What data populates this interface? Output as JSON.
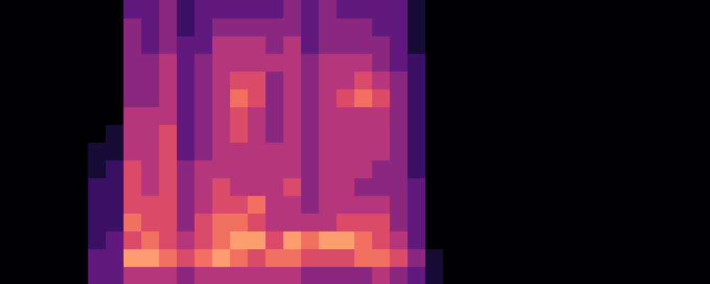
{
  "chart_data": {
    "type": "heatmap",
    "categories": [
      null,
      null,
      null,
      null,
      null,
      null,
      null,
      null,
      null,
      null,
      null,
      null,
      null,
      null,
      null,
      null,
      null,
      null,
      null,
      null,
      null,
      null,
      null,
      null,
      null,
      null,
      null,
      null,
      null,
      null,
      null,
      null,
      null,
      null,
      null,
      null,
      null,
      null,
      null,
      null
    ],
    "ylim": [
      0,
      16
    ],
    "zlim": [
      0,
      10
    ],
    "tick_labels": false,
    "grid": false,
    "cells": [
      [
        0,
        0,
        0,
        0,
        0,
        0,
        0,
        3,
        3,
        4,
        2,
        3,
        3,
        3,
        3,
        3,
        4,
        3,
        4,
        3,
        3,
        3,
        3,
        1,
        0,
        0,
        0,
        0,
        0,
        0,
        0,
        0,
        0,
        0,
        0,
        0,
        0,
        0,
        0,
        0
      ],
      [
        0,
        0,
        0,
        0,
        0,
        0,
        0,
        4,
        3,
        4,
        2,
        3,
        4,
        4,
        4,
        4,
        4,
        3,
        4,
        4,
        4,
        3,
        3,
        1,
        0,
        0,
        0,
        0,
        0,
        0,
        0,
        0,
        0,
        0,
        0,
        0,
        0,
        0,
        0,
        0
      ],
      [
        0,
        0,
        0,
        0,
        0,
        0,
        0,
        4,
        3,
        4,
        3,
        3,
        5,
        5,
        5,
        4,
        5,
        3,
        4,
        4,
        4,
        4,
        3,
        1,
        0,
        0,
        0,
        0,
        0,
        0,
        0,
        0,
        0,
        0,
        0,
        0,
        0,
        0,
        0,
        0
      ],
      [
        0,
        0,
        0,
        0,
        0,
        0,
        0,
        4,
        4,
        5,
        3,
        4,
        5,
        5,
        5,
        5,
        5,
        4,
        5,
        5,
        5,
        4,
        3,
        2,
        0,
        0,
        0,
        0,
        0,
        0,
        0,
        0,
        0,
        0,
        0,
        0,
        0,
        0,
        0,
        0
      ],
      [
        0,
        0,
        0,
        0,
        0,
        0,
        0,
        4,
        4,
        5,
        3,
        4,
        5,
        6,
        6,
        4,
        5,
        4,
        5,
        5,
        6,
        5,
        4,
        2,
        0,
        0,
        0,
        0,
        0,
        0,
        0,
        0,
        0,
        0,
        0,
        0,
        0,
        0,
        0,
        0
      ],
      [
        0,
        0,
        0,
        0,
        0,
        0,
        0,
        4,
        4,
        5,
        3,
        4,
        5,
        7,
        6,
        4,
        5,
        4,
        5,
        6,
        7,
        6,
        4,
        2,
        0,
        0,
        0,
        0,
        0,
        0,
        0,
        0,
        0,
        0,
        0,
        0,
        0,
        0,
        0,
        0
      ],
      [
        0,
        0,
        0,
        0,
        0,
        0,
        0,
        5,
        5,
        5,
        3,
        4,
        5,
        6,
        5,
        4,
        5,
        4,
        5,
        5,
        5,
        5,
        4,
        2,
        0,
        0,
        0,
        0,
        0,
        0,
        0,
        0,
        0,
        0,
        0,
        0,
        0,
        0,
        0,
        0
      ],
      [
        0,
        0,
        0,
        0,
        0,
        0,
        1,
        5,
        5,
        6,
        3,
        4,
        5,
        6,
        5,
        4,
        5,
        4,
        5,
        5,
        5,
        5,
        4,
        2,
        0,
        0,
        0,
        0,
        0,
        0,
        0,
        0,
        0,
        0,
        0,
        0,
        0,
        0,
        0,
        0
      ],
      [
        0,
        0,
        0,
        0,
        0,
        1,
        1,
        5,
        5,
        6,
        3,
        4,
        5,
        5,
        5,
        5,
        5,
        4,
        5,
        5,
        5,
        5,
        4,
        2,
        0,
        0,
        0,
        0,
        0,
        0,
        0,
        0,
        0,
        0,
        0,
        0,
        0,
        0,
        0,
        0
      ],
      [
        0,
        0,
        0,
        0,
        0,
        1,
        2,
        6,
        5,
        6,
        4,
        5,
        5,
        5,
        5,
        5,
        5,
        4,
        5,
        5,
        5,
        4,
        4,
        2,
        0,
        0,
        0,
        0,
        0,
        0,
        0,
        0,
        0,
        0,
        0,
        0,
        0,
        0,
        0,
        0
      ],
      [
        0,
        0,
        0,
        0,
        0,
        2,
        2,
        6,
        5,
        6,
        4,
        5,
        6,
        5,
        5,
        5,
        6,
        4,
        5,
        5,
        4,
        4,
        4,
        3,
        0,
        0,
        0,
        0,
        0,
        0,
        0,
        0,
        0,
        0,
        0,
        0,
        0,
        0,
        0,
        0
      ],
      [
        0,
        0,
        0,
        0,
        0,
        2,
        2,
        6,
        6,
        6,
        4,
        5,
        6,
        6,
        7,
        5,
        5,
        4,
        5,
        5,
        5,
        5,
        4,
        3,
        0,
        0,
        0,
        0,
        0,
        0,
        0,
        0,
        0,
        0,
        0,
        0,
        0,
        0,
        0,
        0
      ],
      [
        0,
        0,
        0,
        0,
        0,
        2,
        2,
        7,
        6,
        6,
        4,
        6,
        7,
        7,
        6,
        5,
        5,
        5,
        5,
        6,
        6,
        6,
        4,
        3,
        0,
        0,
        0,
        0,
        0,
        0,
        0,
        0,
        0,
        0,
        0,
        0,
        0,
        0,
        0,
        0
      ],
      [
        0,
        0,
        0,
        0,
        0,
        2,
        3,
        6,
        7,
        6,
        5,
        6,
        7,
        8,
        8,
        6,
        8,
        7,
        8,
        8,
        7,
        6,
        5,
        3,
        0,
        0,
        0,
        0,
        0,
        0,
        0,
        0,
        0,
        0,
        0,
        0,
        0,
        0,
        0,
        0
      ],
      [
        0,
        0,
        0,
        0,
        0,
        3,
        3,
        8,
        8,
        7,
        6,
        7,
        8,
        7,
        6,
        7,
        7,
        6,
        6,
        6,
        7,
        7,
        6,
        4,
        1,
        0,
        0,
        0,
        0,
        0,
        0,
        0,
        0,
        0,
        0,
        0,
        0,
        0,
        0,
        0
      ],
      [
        0,
        0,
        0,
        0,
        0,
        3,
        3,
        5,
        5,
        5,
        4,
        5,
        5,
        5,
        5,
        5,
        5,
        4,
        4,
        4,
        4,
        5,
        4,
        3,
        1,
        0,
        0,
        0,
        0,
        0,
        0,
        0,
        0,
        0,
        0,
        0,
        0,
        0,
        0,
        0
      ]
    ]
  }
}
